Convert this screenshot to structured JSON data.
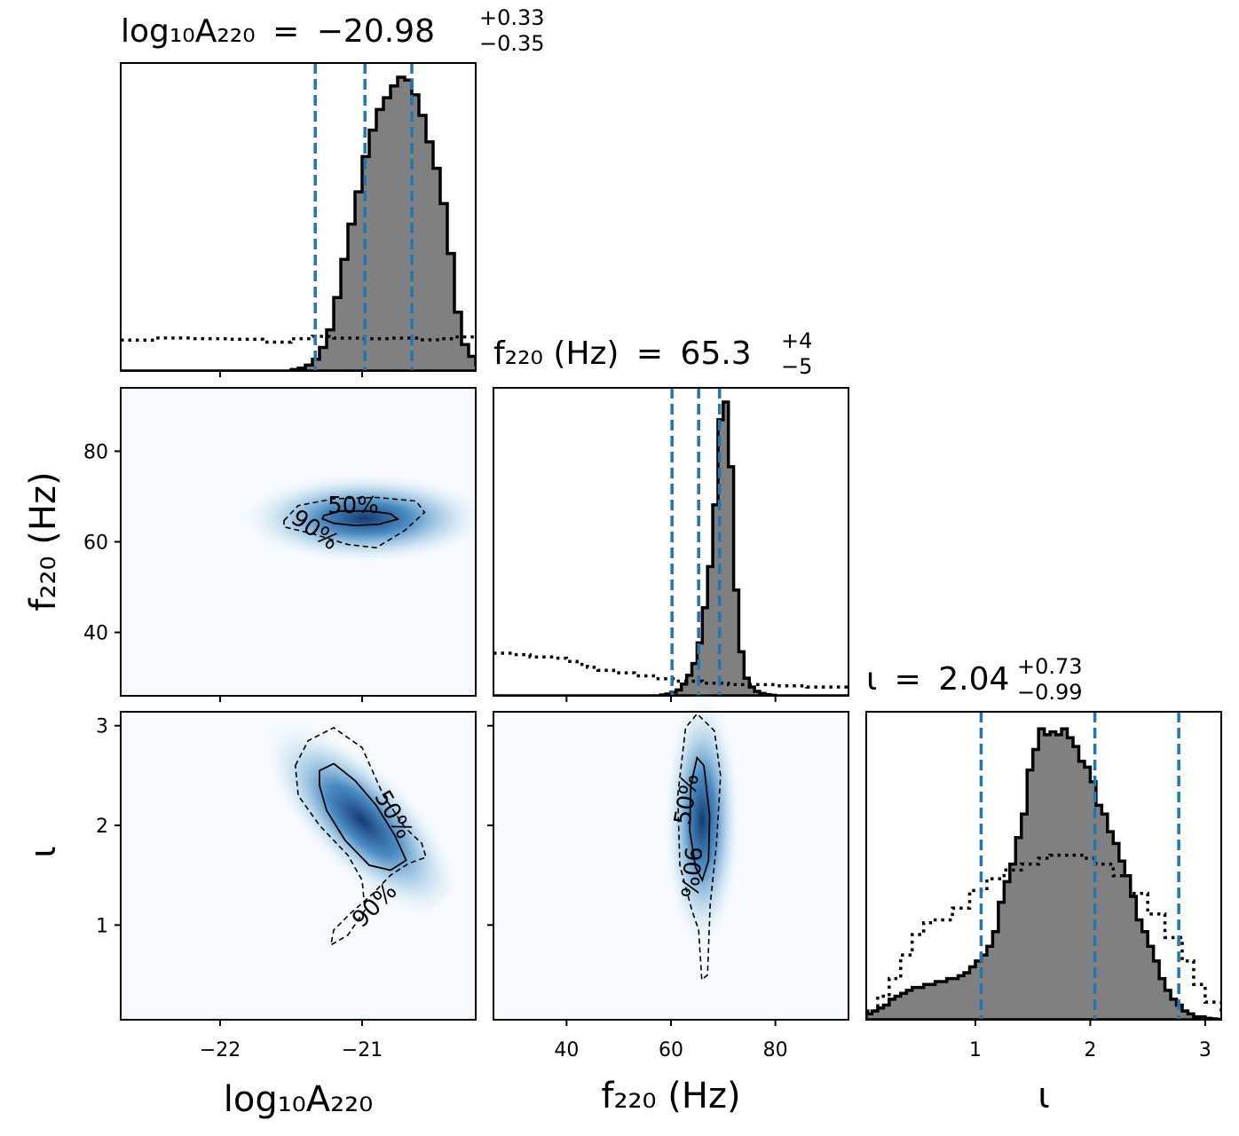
{
  "chart_data": [
    {
      "type": "histogram",
      "panel": "log10A220",
      "title": {
        "lhs": "log₁₀A₂₂₀",
        "eq": "=",
        "value": "−20.98",
        "plus": "+0.33",
        "minus": "−0.35"
      },
      "xlim": [
        -22.7,
        -20.2
      ],
      "quantiles": [
        -21.33,
        -20.98,
        -20.65
      ],
      "bins": {
        "start": -22.7,
        "width": 0.05,
        "counts": [
          0,
          0,
          0,
          0,
          0,
          0,
          0,
          0,
          0,
          0,
          0,
          0,
          0,
          0,
          0,
          0,
          0,
          0,
          0,
          0,
          0,
          0,
          0,
          0,
          0.005,
          0.01,
          0.02,
          0.04,
          0.08,
          0.14,
          0.25,
          0.38,
          0.5,
          0.61,
          0.73,
          0.82,
          0.89,
          0.93,
          0.97,
          1.0,
          0.99,
          0.94,
          0.87,
          0.78,
          0.69,
          0.57,
          0.4,
          0.2,
          0.09,
          0.05,
          0.02,
          0.01,
          0,
          0,
          0,
          0,
          0,
          0,
          0,
          0
        ]
      },
      "prior": {
        "x": [
          -22.7,
          -22.45,
          -22.2,
          -21.95,
          -21.7,
          -21.5,
          -21.35,
          -21.2,
          -21.0,
          -20.8,
          -20.6,
          -20.45,
          -20.35,
          -20.2
        ],
        "y": [
          0.105,
          0.112,
          0.11,
          0.108,
          0.098,
          0.11,
          0.118,
          0.112,
          0.11,
          0.112,
          0.106,
          0.11,
          0.116,
          0.112
        ]
      }
    },
    {
      "type": "histogram",
      "panel": "f220",
      "title": {
        "lhs": "f₂₂₀ (Hz)",
        "eq": "=",
        "value": "65.3",
        "plus": "+4",
        "minus": "−5"
      },
      "xlim": [
        26,
        94
      ],
      "quantiles": [
        60.2,
        65.3,
        69.3
      ],
      "bins": {
        "start": 26,
        "width": 1,
        "counts": [
          0,
          0,
          0,
          0,
          0,
          0,
          0,
          0,
          0,
          0,
          0,
          0,
          0,
          0,
          0,
          0,
          0,
          0,
          0,
          0,
          0,
          0,
          0,
          0,
          0,
          0,
          0,
          0,
          0,
          0,
          0,
          0,
          0.003,
          0.006,
          0.012,
          0.02,
          0.04,
          0.07,
          0.11,
          0.18,
          0.3,
          0.44,
          0.65,
          0.94,
          1.0,
          0.78,
          0.36,
          0.15,
          0.06,
          0.03,
          0.015,
          0.008,
          0.004,
          0.002,
          0,
          0,
          0,
          0,
          0,
          0,
          0,
          0,
          0,
          0,
          0,
          0,
          0,
          0
        ]
      },
      "prior": {
        "x": [
          26,
          30,
          33,
          38,
          40,
          42,
          44,
          46,
          49,
          53,
          57,
          61,
          66,
          71,
          80,
          86,
          94
        ],
        "y": [
          0.145,
          0.14,
          0.132,
          0.128,
          0.117,
          0.107,
          0.097,
          0.087,
          0.078,
          0.068,
          0.058,
          0.05,
          0.043,
          0.038,
          0.034,
          0.03,
          0.027
        ]
      }
    },
    {
      "type": "histogram",
      "panel": "iota",
      "title": {
        "lhs": "ι",
        "eq": "=",
        "value": "2.04",
        "plus": "+0.73",
        "minus": "−0.99"
      },
      "xlim": [
        0.05,
        3.14
      ],
      "quantiles": [
        1.05,
        2.04,
        2.77
      ],
      "bins": {
        "start": 0.05,
        "width": 0.05,
        "counts": [
          0.02,
          0.03,
          0.04,
          0.05,
          0.07,
          0.08,
          0.09,
          0.1,
          0.11,
          0.11,
          0.12,
          0.12,
          0.13,
          0.13,
          0.14,
          0.14,
          0.15,
          0.16,
          0.18,
          0.2,
          0.22,
          0.25,
          0.3,
          0.4,
          0.47,
          0.53,
          0.62,
          0.7,
          0.85,
          0.92,
          0.99,
          0.97,
          0.98,
          0.97,
          0.99,
          0.96,
          0.93,
          0.88,
          0.86,
          0.81,
          0.73,
          0.7,
          0.64,
          0.6,
          0.54,
          0.49,
          0.42,
          0.34,
          0.3,
          0.25,
          0.2,
          0.14,
          0.1,
          0.07,
          0.05,
          0.03,
          0.02,
          0.01,
          0.01,
          0.005,
          0.003,
          0.001
        ]
      },
      "prior": {
        "x": [
          0.05,
          0.15,
          0.25,
          0.35,
          0.45,
          0.55,
          0.65,
          0.8,
          0.95,
          1.1,
          1.25,
          1.4,
          1.55,
          1.65,
          1.75,
          1.85,
          1.95,
          2.05,
          2.2,
          2.35,
          2.5,
          2.65,
          2.8,
          2.9,
          3.0,
          3.14
        ],
        "y": [
          0.03,
          0.08,
          0.14,
          0.22,
          0.29,
          0.33,
          0.34,
          0.38,
          0.44,
          0.48,
          0.51,
          0.53,
          0.55,
          0.56,
          0.56,
          0.56,
          0.55,
          0.53,
          0.49,
          0.43,
          0.36,
          0.28,
          0.2,
          0.12,
          0.06,
          0.02
        ]
      }
    },
    {
      "type": "heatmap",
      "panel": "log10A220 vs f220",
      "xlim": [
        -22.7,
        -20.2
      ],
      "ylim": [
        26,
        94
      ],
      "levels": [
        "50%",
        "90%"
      ],
      "contour_50": [
        [
          -21.27,
          65.8
        ],
        [
          -21.15,
          66.8
        ],
        [
          -20.95,
          66.8
        ],
        [
          -20.8,
          66.2
        ],
        [
          -20.75,
          65.0
        ],
        [
          -20.88,
          63.9
        ],
        [
          -21.05,
          63.6
        ],
        [
          -21.2,
          64.1
        ],
        [
          -21.28,
          65.1
        ]
      ],
      "contour_90": [
        [
          -21.55,
          64.7
        ],
        [
          -21.45,
          68.0
        ],
        [
          -21.2,
          69.5
        ],
        [
          -20.9,
          69.8
        ],
        [
          -20.62,
          69.0
        ],
        [
          -20.56,
          66.5
        ],
        [
          -20.7,
          62.5
        ],
        [
          -20.9,
          58.7
        ],
        [
          -21.1,
          59.4
        ],
        [
          -21.35,
          61.8
        ],
        [
          -21.55,
          63.3
        ]
      ],
      "density_peak": [
        -20.98,
        65.2
      ]
    },
    {
      "type": "heatmap",
      "panel": "log10A220 vs iota",
      "xlim": [
        -22.7,
        -20.2
      ],
      "ylim": [
        0.05,
        3.14
      ],
      "levels": [
        "50%",
        "90%"
      ],
      "contour_50": [
        [
          -21.3,
          2.55
        ],
        [
          -21.2,
          2.62
        ],
        [
          -21.05,
          2.45
        ],
        [
          -20.9,
          2.2
        ],
        [
          -20.77,
          1.9
        ],
        [
          -20.69,
          1.65
        ],
        [
          -20.8,
          1.55
        ],
        [
          -20.95,
          1.6
        ],
        [
          -21.12,
          1.85
        ],
        [
          -21.25,
          2.15
        ],
        [
          -21.3,
          2.4
        ]
      ],
      "contour_90": [
        [
          -21.47,
          2.6
        ],
        [
          -21.38,
          2.85
        ],
        [
          -21.2,
          2.98
        ],
        [
          -21.0,
          2.78
        ],
        [
          -20.85,
          2.3
        ],
        [
          -20.7,
          1.98
        ],
        [
          -20.58,
          1.82
        ],
        [
          -20.55,
          1.68
        ],
        [
          -20.67,
          1.62
        ],
        [
          -20.8,
          1.5
        ],
        [
          -20.92,
          1.32
        ],
        [
          -21.08,
          1.12
        ],
        [
          -21.2,
          0.95
        ],
        [
          -21.22,
          0.8
        ],
        [
          -21.1,
          0.9
        ],
        [
          -20.98,
          1.15
        ],
        [
          -21.0,
          1.45
        ],
        [
          -21.1,
          1.7
        ],
        [
          -21.3,
          2.0
        ],
        [
          -21.45,
          2.3
        ]
      ],
      "density_peak": [
        -21.0,
        2.05
      ]
    },
    {
      "type": "heatmap",
      "panel": "f220 vs iota",
      "xlim": [
        26,
        94
      ],
      "ylim": [
        0.05,
        3.14
      ],
      "levels": [
        "50%",
        "90%"
      ],
      "contour_50": [
        [
          63.8,
          2.4
        ],
        [
          65.0,
          2.68
        ],
        [
          66.3,
          2.6
        ],
        [
          67.4,
          2.1
        ],
        [
          67.2,
          1.65
        ],
        [
          66.0,
          1.45
        ],
        [
          64.7,
          1.58
        ],
        [
          63.6,
          1.95
        ]
      ],
      "contour_90": [
        [
          61.3,
          2.3
        ],
        [
          62.8,
          2.98
        ],
        [
          65.0,
          3.12
        ],
        [
          68.3,
          2.95
        ],
        [
          69.5,
          2.5
        ],
        [
          68.7,
          1.8
        ],
        [
          67.5,
          1.2
        ],
        [
          67.0,
          0.5
        ],
        [
          65.9,
          0.45
        ],
        [
          65.3,
          0.95
        ],
        [
          64.0,
          1.15
        ],
        [
          61.7,
          1.6
        ]
      ],
      "density_peak": [
        66.0,
        2.05
      ]
    }
  ],
  "axes": {
    "log10A220": {
      "label": "log₁₀A₂₂₀",
      "ticks": [
        -22,
        -21
      ],
      "tick_labels": [
        "−22",
        "−21"
      ]
    },
    "f220": {
      "label": "f₂₂₀ (Hz)",
      "ticks": [
        40,
        60,
        80
      ],
      "tick_labels": [
        "40",
        "60",
        "80"
      ]
    },
    "iota": {
      "label": "ι",
      "ticks": [
        1,
        2,
        3
      ],
      "tick_labels": [
        "1",
        "2",
        "3"
      ]
    }
  },
  "contour_labels": {
    "p50": "50%",
    "p90": "90%"
  },
  "colors": {
    "hist_fill": "#808080",
    "hist_edge": "#000000",
    "quantile_line": "#1f77b4",
    "density_low": "#f7fbff",
    "density_high": "#08306b"
  }
}
